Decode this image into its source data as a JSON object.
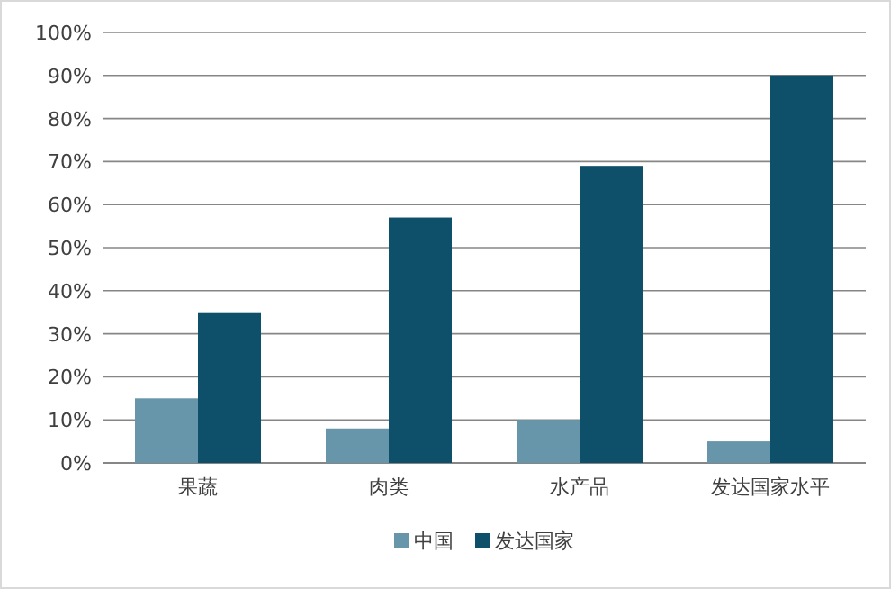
{
  "chart_data": {
    "type": "bar",
    "categories": [
      "果蔬",
      "肉类",
      "水产品",
      "发达国家水平"
    ],
    "series": [
      {
        "name": "中国",
        "color": "#6795a9",
        "values": [
          15,
          8,
          10,
          5
        ]
      },
      {
        "name": "发达国家",
        "color": "#0e4f6a",
        "values": [
          35,
          57,
          69,
          90
        ]
      }
    ],
    "ylim": [
      0,
      100
    ],
    "yticks": [
      {
        "value": 0,
        "label": "0%"
      },
      {
        "value": 10,
        "label": "10%"
      },
      {
        "value": 20,
        "label": "20%"
      },
      {
        "value": 30,
        "label": "30%"
      },
      {
        "value": 40,
        "label": "40%"
      },
      {
        "value": 50,
        "label": "50%"
      },
      {
        "value": 60,
        "label": "60%"
      },
      {
        "value": 70,
        "label": "70%"
      },
      {
        "value": 80,
        "label": "80%"
      },
      {
        "value": 90,
        "label": "90%"
      },
      {
        "value": 100,
        "label": "100%"
      }
    ],
    "grid": "y",
    "legend": "bottom"
  }
}
